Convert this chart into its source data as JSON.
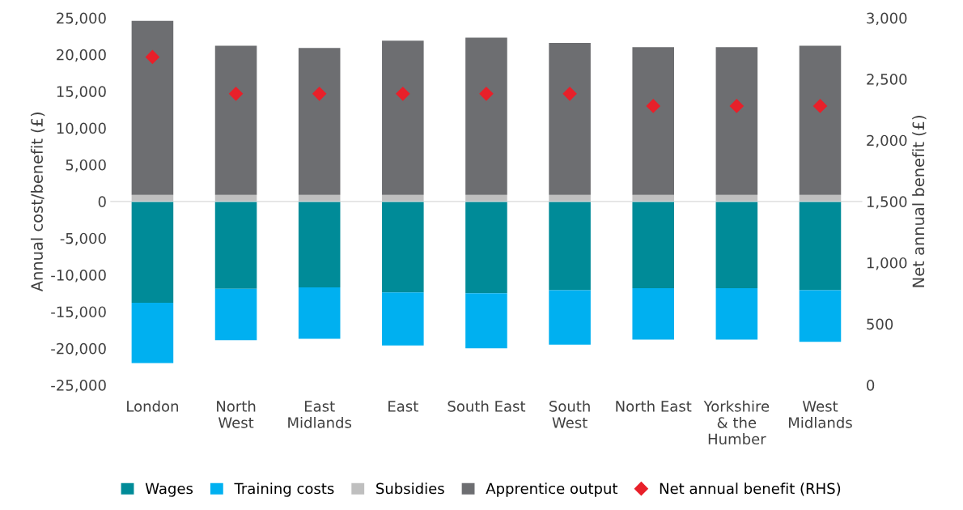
{
  "chart_data": {
    "type": "bar",
    "stacked": true,
    "ylabel": "Annual cost/benefit (£)",
    "y2label": "Net annual benefit (£)",
    "categories": [
      "London",
      "North\nWest",
      "East\nMidlands",
      "East",
      "South East",
      "South\nWest",
      "North East",
      "Yorkshire\n& the\nHumber",
      "West\nMidlands"
    ],
    "series": [
      {
        "name": "Wages",
        "color": "#008b98",
        "values": [
          -13800,
          -11900,
          -11700,
          -12400,
          -12500,
          -12100,
          -11800,
          -11800,
          -12100
        ]
      },
      {
        "name": "Training costs",
        "color": "#00b0f0",
        "values": [
          -8200,
          -7000,
          -7000,
          -7200,
          -7500,
          -7400,
          -7000,
          -7000,
          -7000
        ]
      },
      {
        "name": "Subsidies",
        "color": "#bfbfbf",
        "values": [
          900,
          900,
          900,
          900,
          900,
          900,
          900,
          900,
          900
        ]
      },
      {
        "name": "Apprentice output",
        "color": "#6d6e71",
        "values": [
          23700,
          20300,
          20000,
          21000,
          21400,
          20700,
          20100,
          20100,
          20300
        ]
      },
      {
        "name": "Net annual benefit (RHS)",
        "type": "scatter",
        "axis": "y2",
        "marker": "diamond",
        "color": "#e8202a",
        "values": [
          2680,
          2380,
          2380,
          2380,
          2380,
          2380,
          2280,
          2280,
          2280
        ]
      }
    ],
    "ylim": [
      -25000,
      25000
    ],
    "yticks": [
      {
        "value": -25000,
        "label": "-25,000"
      },
      {
        "value": -20000,
        "label": "-20,000"
      },
      {
        "value": -15000,
        "label": "-15,000"
      },
      {
        "value": -10000,
        "label": "-10,000"
      },
      {
        "value": -5000,
        "label": "-5,000"
      },
      0,
      {
        "value": 5000,
        "label": "5,000"
      },
      {
        "value": 10000,
        "label": "10,000"
      },
      {
        "value": 15000,
        "label": "15,000"
      },
      {
        "value": 20000,
        "label": "20,000"
      },
      {
        "value": 25000,
        "label": "25,000"
      }
    ],
    "y2lim": [
      0,
      3000
    ],
    "y2ticks": [
      0,
      500,
      {
        "value": 1000,
        "label": "1,000"
      },
      {
        "value": 1500,
        "label": "1,500"
      },
      {
        "value": 2000,
        "label": "2,000"
      },
      {
        "value": 2500,
        "label": "2,500"
      },
      {
        "value": 3000,
        "label": "3,000"
      }
    ],
    "legend": "bottom"
  }
}
